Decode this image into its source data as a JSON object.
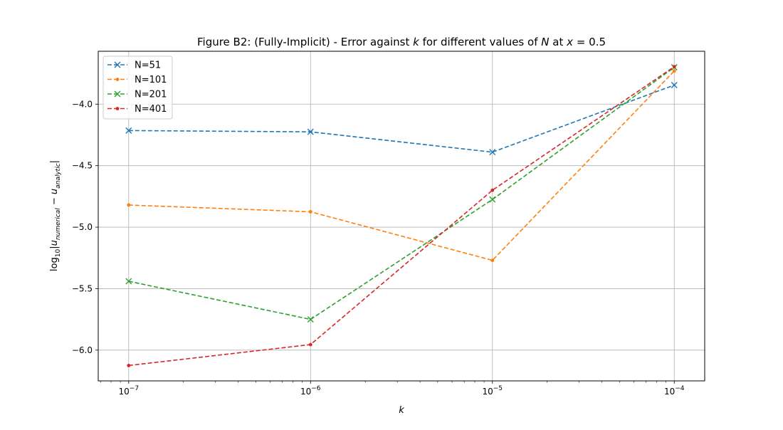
{
  "chart_data": {
    "type": "line",
    "title": "Figure B2: (Fully-Implicit) - Error against",
    "title_k": "k",
    "title_mid": "for different values of",
    "title_N": "N",
    "title_at": "at",
    "title_x": "x",
    "title_eq": "= 0.5",
    "xlabel": "k",
    "ylabel_log": "log",
    "ylabel_sub": "10",
    "ylabel_open": "|u",
    "ylabel_num": "numerical",
    "ylabel_minus": " − u",
    "ylabel_an": "analytic",
    "ylabel_close": "|",
    "x_scale": "log",
    "x": [
      1e-07,
      1e-06,
      1e-05,
      0.0001
    ],
    "xlim": [
      6.8e-08,
      0.000147
    ],
    "ylim": [
      -6.25,
      -3.57
    ],
    "x_ticks": [
      {
        "value": 1e-07,
        "base": "10",
        "exp": "−7"
      },
      {
        "value": 1e-06,
        "base": "10",
        "exp": "−6"
      },
      {
        "value": 1e-05,
        "base": "10",
        "exp": "−5"
      },
      {
        "value": 0.0001,
        "base": "10",
        "exp": "−4"
      }
    ],
    "y_ticks": [
      {
        "value": -4.0,
        "label": "−4.0"
      },
      {
        "value": -4.5,
        "label": "−4.5"
      },
      {
        "value": -5.0,
        "label": "−5.0"
      },
      {
        "value": -5.5,
        "label": "−5.5"
      },
      {
        "value": -6.0,
        "label": "−6.0"
      }
    ],
    "grid": true,
    "legend_position": "top-left",
    "series": [
      {
        "name": "N=51",
        "color": "#1f77b4",
        "marker": "x",
        "values": [
          -4.215,
          -4.225,
          -4.39,
          -3.845
        ]
      },
      {
        "name": "N=101",
        "color": "#ff7f0e",
        "marker": "dot",
        "values": [
          -4.82,
          -4.875,
          -5.27,
          -3.73
        ]
      },
      {
        "name": "N=201",
        "color": "#2ca02c",
        "marker": "x",
        "values": [
          -5.44,
          -5.75,
          -4.775,
          -3.7
        ]
      },
      {
        "name": "N=401",
        "color": "#d62728",
        "marker": "dot",
        "values": [
          -6.125,
          -5.955,
          -4.7,
          -3.695
        ]
      }
    ]
  }
}
